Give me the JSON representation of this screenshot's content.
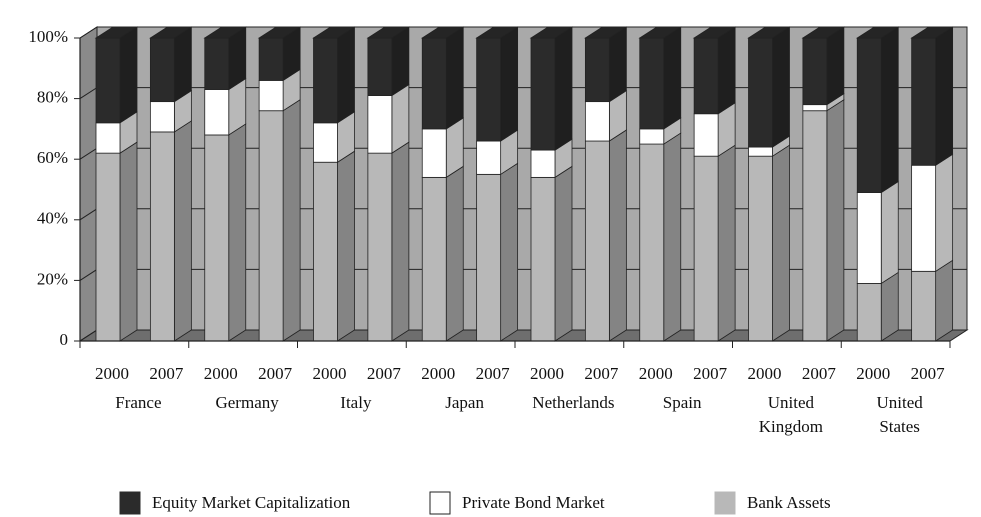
{
  "chart_data": {
    "type": "stacked-bar-3d",
    "categories": [
      "2000",
      "2007",
      "2000",
      "2007",
      "2000",
      "2007",
      "2000",
      "2007",
      "2000",
      "2007",
      "2000",
      "2007",
      "2000",
      "2007",
      "2000",
      "2007"
    ],
    "groups": [
      "France",
      "Germany",
      "Italy",
      "Japan",
      "Netherlands",
      "Spain",
      "United Kingdom",
      "United States"
    ],
    "series": [
      {
        "name": "Bank Assets",
        "color": "#b8b8b8",
        "values": [
          62,
          69,
          68,
          76,
          59,
          62,
          54,
          55,
          54,
          66,
          65,
          61,
          61,
          76,
          19,
          23
        ]
      },
      {
        "name": "Private Bond Market",
        "color": "#ffffff",
        "values": [
          10,
          10,
          15,
          10,
          13,
          19,
          16,
          11,
          9,
          13,
          5,
          14,
          3,
          2,
          30,
          35
        ]
      },
      {
        "name": "Equity Market Capitalization",
        "color": "#2b2b2b",
        "values": [
          28,
          21,
          17,
          14,
          28,
          19,
          30,
          34,
          37,
          21,
          30,
          25,
          36,
          22,
          51,
          42
        ]
      }
    ],
    "ylim": [
      0,
      100
    ],
    "yticks": [
      0,
      {
        "value": 20,
        "label": "20%"
      },
      {
        "value": 40,
        "label": "40%"
      },
      {
        "value": 60,
        "label": "60%"
      },
      {
        "value": 80,
        "label": "80%"
      },
      {
        "value": 100,
        "label": "100%"
      }
    ],
    "grid": true,
    "legend": "bottom"
  }
}
